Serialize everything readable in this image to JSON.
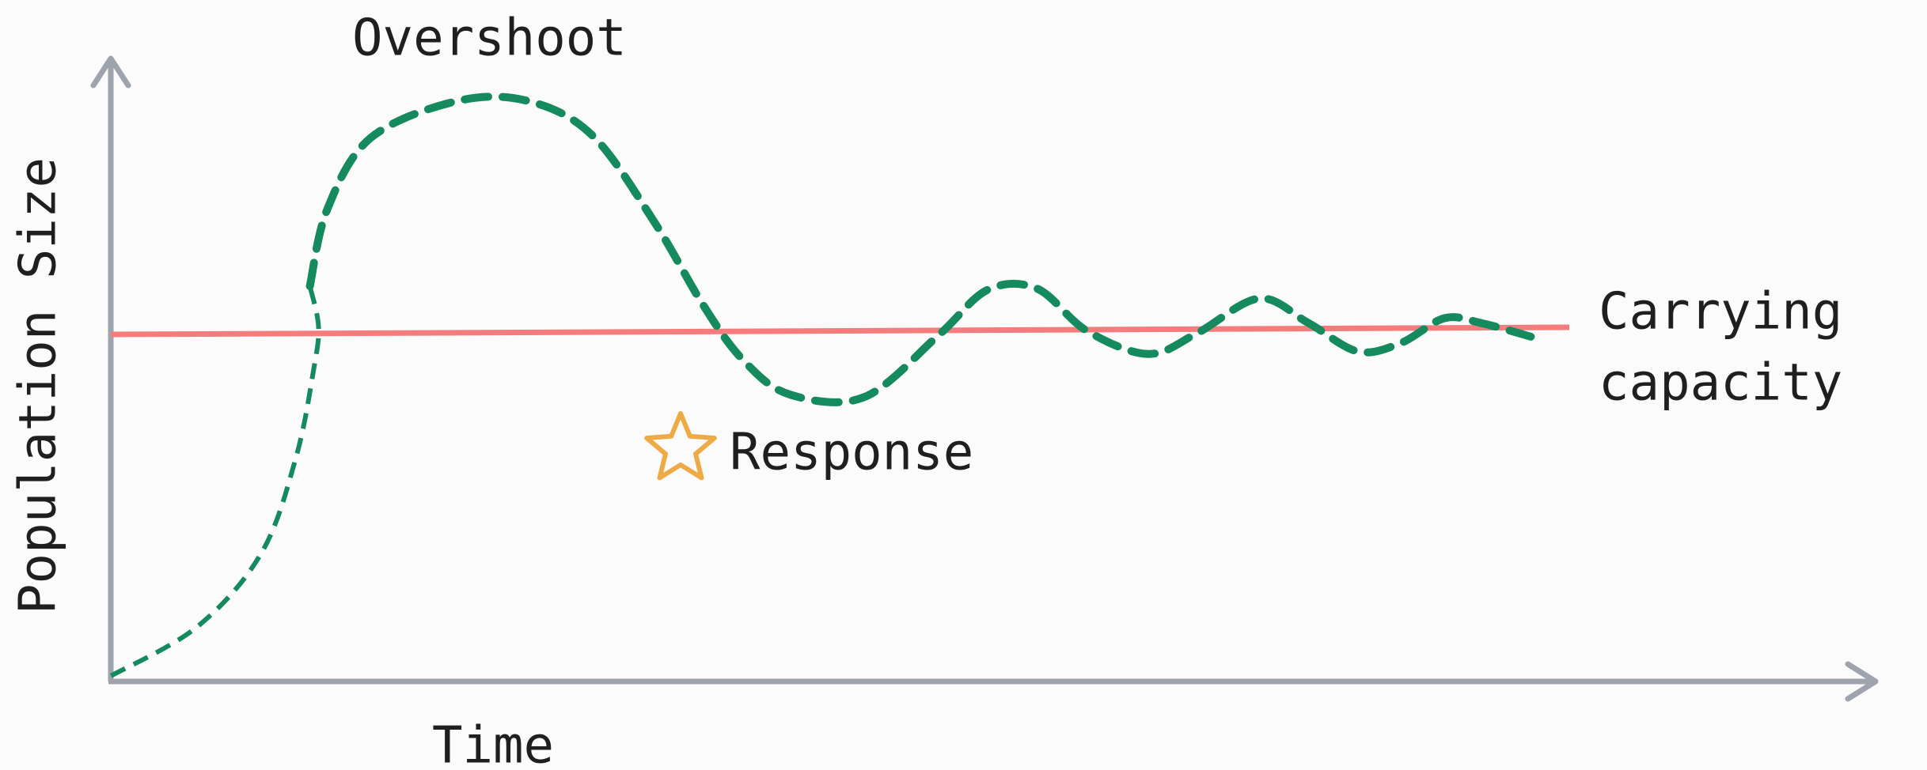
{
  "labels": {
    "peak": "Overshoot",
    "y_axis": "Population Size",
    "x_axis": "Time",
    "capacity_line1": "Carrying",
    "capacity_line2": "capacity",
    "response": "Response"
  }
}
